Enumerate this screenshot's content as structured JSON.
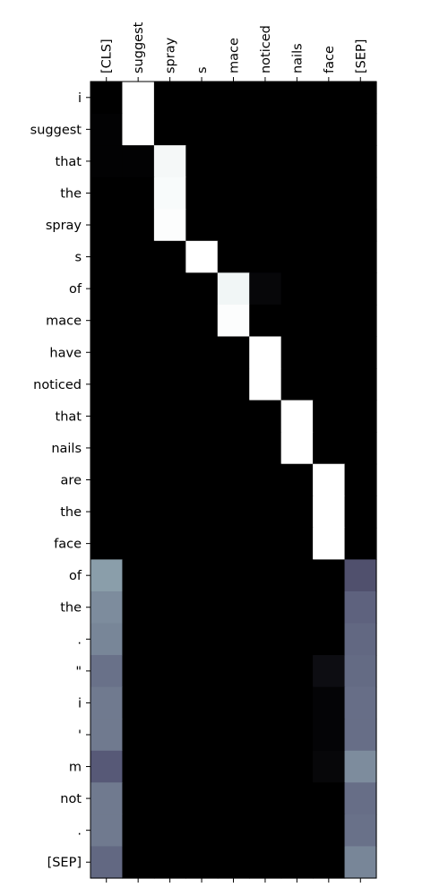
{
  "chart_data": {
    "type": "heatmap",
    "colormap": "bone",
    "value_range": [
      0,
      1
    ],
    "x_labels": [
      "[CLS]",
      "suggest",
      "spray",
      "s",
      "mace",
      "noticed",
      "nails",
      "face",
      "[SEP]"
    ],
    "y_labels": [
      "i",
      "suggest",
      "that",
      "the",
      "spray",
      "s",
      "of",
      "mace",
      "have",
      "noticed",
      "that",
      "nails",
      "are",
      "the",
      "face",
      "of",
      "the",
      ".",
      "\"",
      "i",
      "'",
      "m",
      "not",
      ".",
      "[SEP]"
    ],
    "x_axis_position": "top",
    "grid": false,
    "values": [
      [
        0.0,
        1.0,
        0.0,
        0.0,
        0.0,
        0.0,
        0.0,
        0.0,
        0.0
      ],
      [
        0.01,
        1.0,
        0.0,
        0.0,
        0.0,
        0.0,
        0.0,
        0.0,
        0.0
      ],
      [
        0.01,
        0.01,
        0.97,
        0.0,
        0.0,
        0.0,
        0.0,
        0.0,
        0.0
      ],
      [
        0.0,
        0.0,
        0.98,
        0.0,
        0.0,
        0.0,
        0.0,
        0.0,
        0.0
      ],
      [
        0.0,
        0.0,
        0.99,
        0.0,
        0.0,
        0.0,
        0.0,
        0.0,
        0.0
      ],
      [
        0.0,
        0.0,
        0.0,
        1.0,
        0.0,
        0.0,
        0.0,
        0.0,
        0.0
      ],
      [
        0.0,
        0.0,
        0.0,
        0.0,
        0.96,
        0.03,
        0.0,
        0.0,
        0.0
      ],
      [
        0.0,
        0.0,
        0.0,
        0.0,
        0.99,
        0.0,
        0.0,
        0.0,
        0.0
      ],
      [
        0.0,
        0.0,
        0.0,
        0.0,
        0.0,
        1.0,
        0.0,
        0.0,
        0.0
      ],
      [
        0.0,
        0.0,
        0.0,
        0.0,
        0.0,
        1.0,
        0.0,
        0.0,
        0.0
      ],
      [
        0.0,
        0.0,
        0.0,
        0.0,
        0.0,
        0.0,
        1.0,
        0.0,
        0.0
      ],
      [
        0.0,
        0.0,
        0.0,
        0.0,
        0.0,
        0.0,
        1.0,
        0.0,
        0.0
      ],
      [
        0.0,
        0.0,
        0.0,
        0.0,
        0.0,
        0.0,
        0.0,
        1.0,
        0.0
      ],
      [
        0.0,
        0.0,
        0.0,
        0.0,
        0.0,
        0.0,
        0.0,
        1.0,
        0.0
      ],
      [
        0.0,
        0.0,
        0.0,
        0.0,
        0.0,
        0.0,
        0.0,
        1.0,
        0.0
      ],
      [
        0.62,
        0.0,
        0.0,
        0.0,
        0.0,
        0.0,
        0.0,
        0.0,
        0.36
      ],
      [
        0.56,
        0.0,
        0.0,
        0.0,
        0.0,
        0.0,
        0.0,
        0.0,
        0.42
      ],
      [
        0.54,
        0.0,
        0.0,
        0.0,
        0.0,
        0.0,
        0.0,
        0.0,
        0.44
      ],
      [
        0.47,
        0.0,
        0.0,
        0.0,
        0.0,
        0.0,
        0.0,
        0.06,
        0.45
      ],
      [
        0.5,
        0.0,
        0.0,
        0.0,
        0.0,
        0.0,
        0.0,
        0.02,
        0.46
      ],
      [
        0.5,
        0.0,
        0.0,
        0.0,
        0.0,
        0.0,
        0.0,
        0.02,
        0.46
      ],
      [
        0.39,
        0.0,
        0.0,
        0.0,
        0.0,
        0.0,
        0.0,
        0.03,
        0.56
      ],
      [
        0.5,
        0.0,
        0.0,
        0.0,
        0.0,
        0.0,
        0.0,
        0.0,
        0.46
      ],
      [
        0.5,
        0.0,
        0.0,
        0.0,
        0.0,
        0.0,
        0.0,
        0.0,
        0.47
      ],
      [
        0.44,
        0.0,
        0.0,
        0.0,
        0.0,
        0.0,
        0.0,
        0.0,
        0.54
      ]
    ]
  }
}
